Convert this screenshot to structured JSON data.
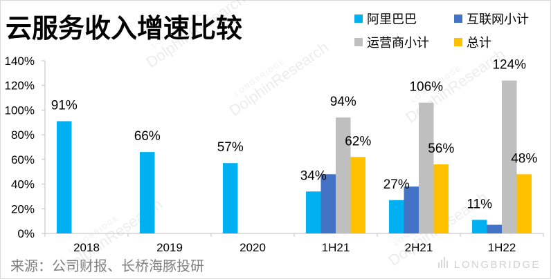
{
  "source": "来源：公司财报、长桥海豚投研",
  "watermark": {
    "brand": "LONGBRIDGE",
    "name": "DolphinResearch"
  },
  "chart_data": {
    "type": "bar",
    "title": "云服务收入增速比较",
    "xlabel": "",
    "ylabel": "",
    "categories": [
      "2018",
      "2019",
      "2020",
      "1H21",
      "2H21",
      "1H22"
    ],
    "ylim": [
      0,
      140
    ],
    "yticks": [
      0,
      20,
      40,
      60,
      80,
      100,
      120,
      140
    ],
    "ytick_labels": [
      "0%",
      "20%",
      "40%",
      "60%",
      "80%",
      "100%",
      "120%",
      "140%"
    ],
    "grid": false,
    "legend_position": "top-right",
    "series": [
      {
        "name": "阿里巴巴",
        "color": "#00B0F0",
        "values": [
          91,
          66,
          57,
          34,
          27,
          11
        ],
        "labels": [
          "91%",
          "66%",
          "57%",
          "34%",
          "27%",
          "11%"
        ]
      },
      {
        "name": "互联网小计",
        "color": "#4472C4",
        "values": [
          null,
          null,
          null,
          48,
          38,
          7
        ],
        "labels": [
          null,
          null,
          null,
          null,
          null,
          null
        ]
      },
      {
        "name": "运营商小计",
        "color": "#BFBFBF",
        "values": [
          null,
          null,
          null,
          94,
          106,
          124
        ],
        "labels": [
          null,
          null,
          null,
          "94%",
          "106%",
          "124%"
        ]
      },
      {
        "name": "总计",
        "color": "#FFC000",
        "values": [
          null,
          null,
          null,
          62,
          56,
          48
        ],
        "labels": [
          null,
          null,
          null,
          "62%",
          "56%",
          "48%"
        ]
      }
    ]
  }
}
